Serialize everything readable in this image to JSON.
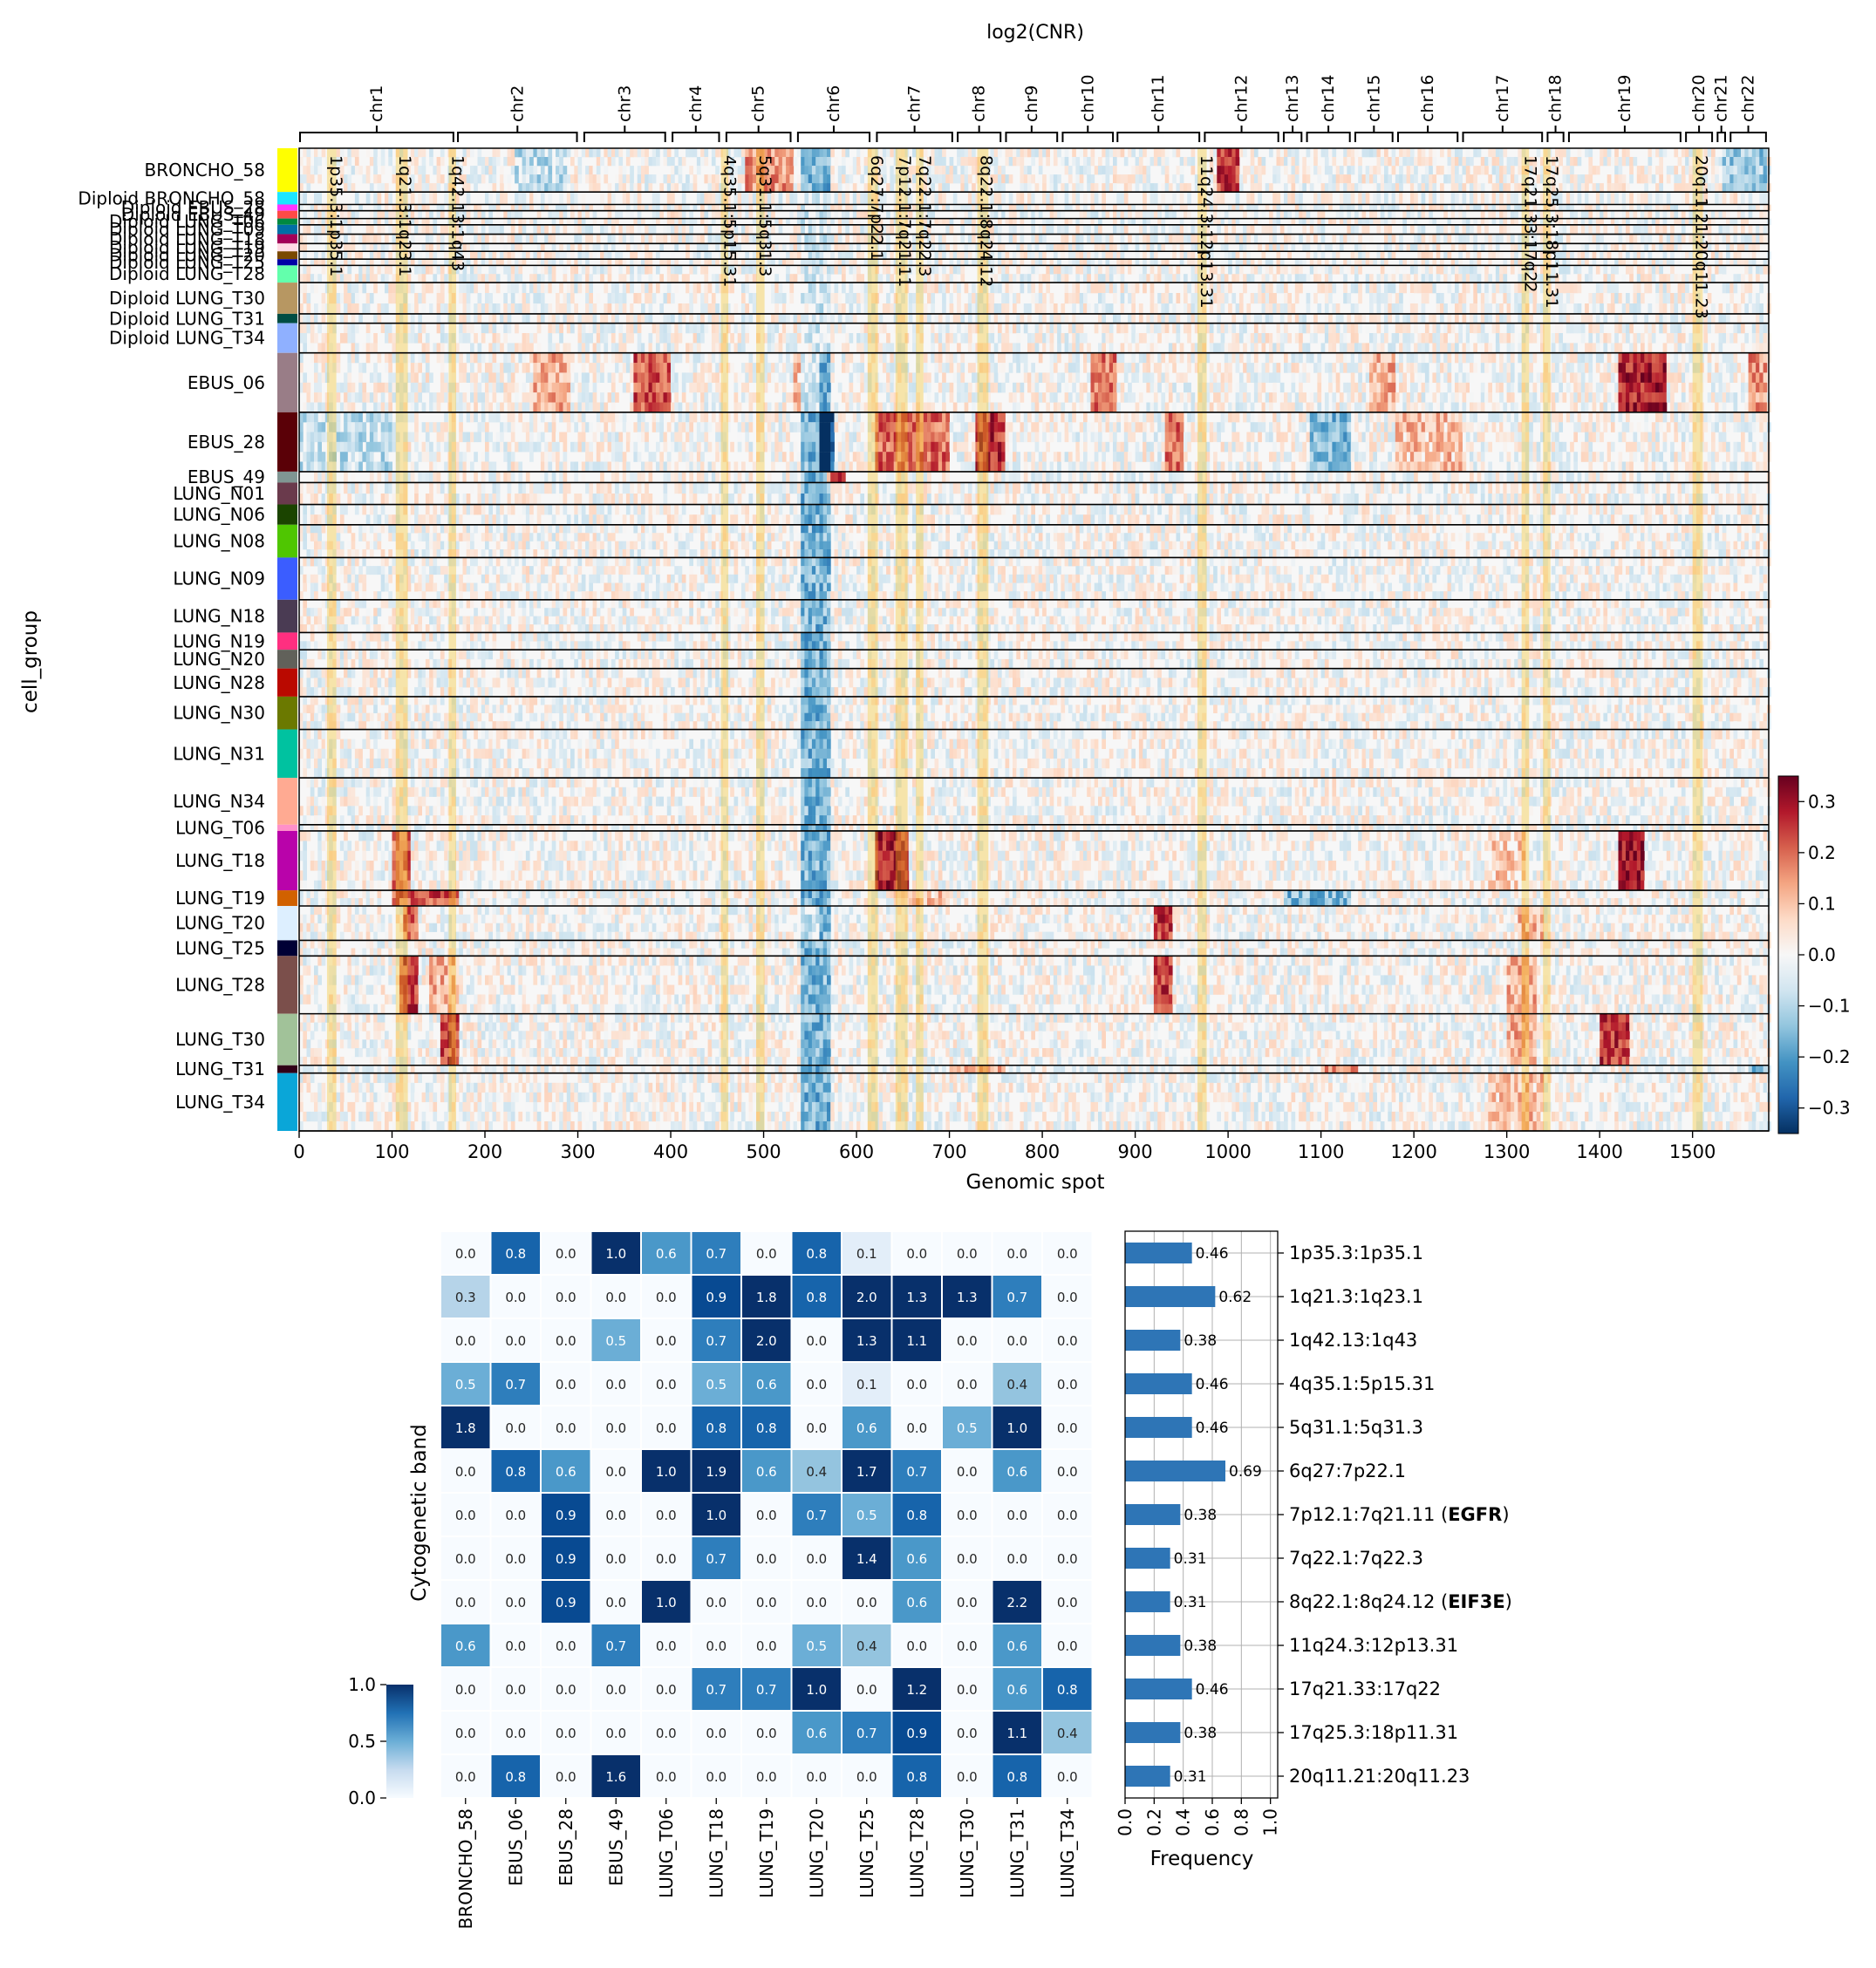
{
  "chart_data": [
    {
      "type": "heatmap",
      "title": "log2(CNR)",
      "xlabel": "Genomic spot",
      "ylabel": "cell_group",
      "xlim": [
        0,
        1582
      ],
      "x_ticks": [
        0,
        100,
        200,
        300,
        400,
        500,
        600,
        700,
        800,
        900,
        1000,
        1100,
        1200,
        1300,
        1400,
        1500
      ],
      "chromosomes": [
        {
          "name": "chr1",
          "start": 0,
          "end": 167
        },
        {
          "name": "chr2",
          "start": 170,
          "end": 300
        },
        {
          "name": "chr3",
          "start": 306,
          "end": 395
        },
        {
          "name": "chr4",
          "start": 401,
          "end": 453
        },
        {
          "name": "chr5",
          "start": 459,
          "end": 530
        },
        {
          "name": "chr6",
          "start": 536,
          "end": 615
        },
        {
          "name": "chr7",
          "start": 621,
          "end": 704
        },
        {
          "name": "chr8",
          "start": 708,
          "end": 756
        },
        {
          "name": "chr9",
          "start": 760,
          "end": 817
        },
        {
          "name": "chr10",
          "start": 821,
          "end": 877
        },
        {
          "name": "chr11",
          "start": 880,
          "end": 970
        },
        {
          "name": "chr12",
          "start": 974,
          "end": 1055
        },
        {
          "name": "chr13",
          "start": 1059,
          "end": 1080
        },
        {
          "name": "chr14",
          "start": 1084,
          "end": 1132
        },
        {
          "name": "chr15",
          "start": 1136,
          "end": 1178
        },
        {
          "name": "chr16",
          "start": 1182,
          "end": 1248
        },
        {
          "name": "chr17",
          "start": 1252,
          "end": 1339
        },
        {
          "name": "chr18",
          "start": 1343,
          "end": 1362
        },
        {
          "name": "chr19",
          "start": 1366,
          "end": 1488
        },
        {
          "name": "chr20",
          "start": 1492,
          "end": 1522
        },
        {
          "name": "chr21",
          "start": 1526,
          "end": 1536
        },
        {
          "name": "chr22",
          "start": 1540,
          "end": 1580
        }
      ],
      "bands": [
        {
          "label": "1p35.3:1p35.1",
          "start": 30,
          "end": 40
        },
        {
          "label": "1q21.3:1q23.1",
          "start": 104,
          "end": 117
        },
        {
          "label": "1q42.13:1q43",
          "start": 161,
          "end": 169
        },
        {
          "label": "4q35.1:5p15.31",
          "start": 454,
          "end": 462
        },
        {
          "label": "5q31.1:5q31.3",
          "start": 492,
          "end": 501
        },
        {
          "label": "6q27:7p22.1",
          "start": 612,
          "end": 623
        },
        {
          "label": "7p12.1:7q21.11",
          "start": 642,
          "end": 655
        },
        {
          "label": "7q22.1:7q22.3",
          "start": 664,
          "end": 672
        },
        {
          "label": "8q22.1:8q24.12",
          "start": 730,
          "end": 742
        },
        {
          "label": "11q24.3:12p13.31",
          "start": 967,
          "end": 977
        },
        {
          "label": "17q21.33:17q22",
          "start": 1316,
          "end": 1324
        },
        {
          "label": "17q25.3:18p11.31",
          "start": 1339,
          "end": 1347
        },
        {
          "label": "20q11.21:20q11.23",
          "start": 1500,
          "end": 1511
        }
      ],
      "groups": [
        {
          "name": "BRONCHO_58",
          "rows": 28,
          "color": "#ffff00"
        },
        {
          "name": "Diploid BRONCHO_58",
          "rows": 8,
          "color": "#1ce6ff"
        },
        {
          "name": "Diploid EBUS_28",
          "rows": 4,
          "color": "#ff34ff"
        },
        {
          "name": "Diploid EBUS_49",
          "rows": 5,
          "color": "#ff4a46"
        },
        {
          "name": "Diploid LUNG_T06",
          "rows": 4,
          "color": "#008941"
        },
        {
          "name": "Diploid LUNG_T09",
          "rows": 6,
          "color": "#006fa6"
        },
        {
          "name": "Diploid LUNG_T18",
          "rows": 6,
          "color": "#a30059"
        },
        {
          "name": "Diploid LUNG_T19",
          "rows": 5,
          "color": "#ffdbe5"
        },
        {
          "name": "Diploid LUNG_T20",
          "rows": 5,
          "color": "#7a4900"
        },
        {
          "name": "Diploid LUNG_T25",
          "rows": 4,
          "color": "#0000a6"
        },
        {
          "name": "Diploid LUNG_T28",
          "rows": 11,
          "color": "#63ffac"
        },
        {
          "name": "Diploid LUNG_T30",
          "rows": 20,
          "color": "#b79762"
        },
        {
          "name": "Diploid LUNG_T31",
          "rows": 6,
          "color": "#004d43"
        },
        {
          "name": "Diploid LUNG_T34",
          "rows": 19,
          "color": "#8fb0ff"
        },
        {
          "name": "EBUS_06",
          "rows": 38,
          "color": "#997d87"
        },
        {
          "name": "EBUS_28",
          "rows": 38,
          "color": "#5a0007"
        },
        {
          "name": "EBUS_49",
          "rows": 7,
          "color": "#809693"
        },
        {
          "name": "LUNG_N01",
          "rows": 14,
          "color": "#6a3a4c"
        },
        {
          "name": "LUNG_N06",
          "rows": 13,
          "color": "#1b4400"
        },
        {
          "name": "LUNG_N08",
          "rows": 21,
          "color": "#4fc601"
        },
        {
          "name": "LUNG_N09",
          "rows": 27,
          "color": "#3b5dff"
        },
        {
          "name": "LUNG_N18",
          "rows": 21,
          "color": "#4a3b53"
        },
        {
          "name": "LUNG_N19",
          "rows": 11,
          "color": "#ff2f80"
        },
        {
          "name": "LUNG_N20",
          "rows": 12,
          "color": "#61615a"
        },
        {
          "name": "LUNG_N28",
          "rows": 18,
          "color": "#ba0900"
        },
        {
          "name": "LUNG_N30",
          "rows": 21,
          "color": "#6b7900"
        },
        {
          "name": "LUNG_N31",
          "rows": 31,
          "color": "#00c2a0"
        },
        {
          "name": "LUNG_N34",
          "rows": 30,
          "color": "#ffaa92"
        },
        {
          "name": "LUNG_T06",
          "rows": 4,
          "color": "#ff90c9"
        },
        {
          "name": "LUNG_T18",
          "rows": 38,
          "color": "#b903aa"
        },
        {
          "name": "LUNG_T19",
          "rows": 10,
          "color": "#d16100"
        },
        {
          "name": "LUNG_T20",
          "rows": 22,
          "color": "#ddefff"
        },
        {
          "name": "LUNG_T25",
          "rows": 10,
          "color": "#000035"
        },
        {
          "name": "LUNG_T28",
          "rows": 37,
          "color": "#7b4f4b"
        },
        {
          "name": "LUNG_T30",
          "rows": 33,
          "color": "#a1c299"
        },
        {
          "name": "LUNG_T31",
          "rows": 5,
          "color": "#300018"
        },
        {
          "name": "LUNG_T34",
          "rows": 37,
          "color": "#0aa6d8"
        }
      ],
      "colorbar": {
        "min": -0.35,
        "max": 0.35,
        "ticks": [
          0.3,
          0.2,
          0.1,
          0.0,
          -0.1,
          -0.2,
          -0.3
        ],
        "colormap": "RdBu_r"
      }
    },
    {
      "type": "heatmap",
      "ylabel": "Cytogenetic band",
      "columns": [
        "BRONCHO_58",
        "EBUS_06",
        "EBUS_28",
        "EBUS_49",
        "LUNG_T06",
        "LUNG_T18",
        "LUNG_T19",
        "LUNG_T20",
        "LUNG_T25",
        "LUNG_T28",
        "LUNG_T30",
        "LUNG_T31",
        "LUNG_T34"
      ],
      "rows": [
        "1p35.3:1p35.1",
        "1q21.3:1q23.1",
        "1q42.13:1q43",
        "4q35.1:5p15.31",
        "5q31.1:5q31.3",
        "6q27:7p22.1",
        "7p12.1:7q21.11",
        "7q22.1:7q22.3",
        "8q22.1:8q24.12",
        "11q24.3:12p13.31",
        "17q21.33:17q22",
        "17q25.3:18p11.31",
        "20q11.21:20q11.23"
      ],
      "values": [
        [
          0.0,
          0.8,
          0.0,
          1.0,
          0.6,
          0.7,
          0.0,
          0.8,
          0.1,
          0.0,
          0.0,
          0.0,
          0.0
        ],
        [
          0.3,
          0.0,
          0.0,
          0.0,
          0.0,
          0.9,
          1.8,
          0.8,
          2.0,
          1.3,
          1.3,
          0.7,
          0.0
        ],
        [
          0.0,
          0.0,
          0.0,
          0.5,
          0.0,
          0.7,
          2.0,
          0.0,
          1.3,
          1.1,
          0.0,
          0.0,
          0.0
        ],
        [
          0.5,
          0.7,
          0.0,
          0.0,
          0.0,
          0.5,
          0.6,
          0.0,
          0.1,
          0.0,
          0.0,
          0.4,
          0.0
        ],
        [
          1.8,
          0.0,
          0.0,
          0.0,
          0.0,
          0.8,
          0.8,
          0.0,
          0.6,
          0.0,
          0.5,
          1.0,
          0.0
        ],
        [
          0.0,
          0.8,
          0.6,
          0.0,
          1.0,
          1.9,
          0.6,
          0.4,
          1.7,
          0.7,
          0.0,
          0.6,
          0.0
        ],
        [
          0.0,
          0.0,
          0.9,
          0.0,
          0.0,
          1.0,
          0.0,
          0.7,
          0.5,
          0.8,
          0.0,
          0.0,
          0.0
        ],
        [
          0.0,
          0.0,
          0.9,
          0.0,
          0.0,
          0.7,
          0.0,
          0.0,
          1.4,
          0.6,
          0.0,
          0.0,
          0.0
        ],
        [
          0.0,
          0.0,
          0.9,
          0.0,
          1.0,
          0.0,
          0.0,
          0.0,
          0.0,
          0.6,
          0.0,
          2.2,
          0.0
        ],
        [
          0.6,
          0.0,
          0.0,
          0.7,
          0.0,
          0.0,
          0.0,
          0.5,
          0.4,
          0.0,
          0.0,
          0.6,
          0.0
        ],
        [
          0.0,
          0.0,
          0.0,
          0.0,
          0.0,
          0.7,
          0.7,
          1.0,
          0.0,
          1.2,
          0.0,
          0.6,
          0.8
        ],
        [
          0.0,
          0.0,
          0.0,
          0.0,
          0.0,
          0.0,
          0.0,
          0.6,
          0.7,
          0.9,
          0.0,
          1.1,
          0.4
        ],
        [
          0.0,
          0.8,
          0.0,
          1.6,
          0.0,
          0.0,
          0.0,
          0.0,
          0.0,
          0.8,
          0.0,
          0.8,
          0.0
        ]
      ],
      "colorbar": {
        "min": 0.0,
        "max": 1.0,
        "ticks": [
          1.0,
          0.5,
          0.0
        ],
        "colormap": "Blues"
      }
    },
    {
      "type": "bar",
      "orientation": "horizontal",
      "xlabel": "Frequency",
      "xlim": [
        0.0,
        1.05
      ],
      "x_ticks": [
        0.0,
        0.2,
        0.4,
        0.6,
        0.8,
        1.0
      ],
      "categories": [
        "1p35.3:1p35.1",
        "1q21.3:1q23.1",
        "1q42.13:1q43",
        "4q35.1:5p15.31",
        "5q31.1:5q31.3",
        "6q27:7p22.1",
        "7p12.1:7q21.11",
        "7q22.1:7q22.3",
        "8q22.1:8q24.12",
        "11q24.3:12p13.31",
        "17q21.33:17q22",
        "17q25.3:18p11.31",
        "20q11.21:20q11.23"
      ],
      "gene_labels": {
        "7p12.1:7q21.11": "EGFR",
        "8q22.1:8q24.12": "EIF3E"
      },
      "values": [
        0.46,
        0.62,
        0.38,
        0.46,
        0.46,
        0.69,
        0.38,
        0.31,
        0.31,
        0.38,
        0.46,
        0.38,
        0.31
      ],
      "bar_color": "#2e75b6",
      "grid": true
    }
  ]
}
